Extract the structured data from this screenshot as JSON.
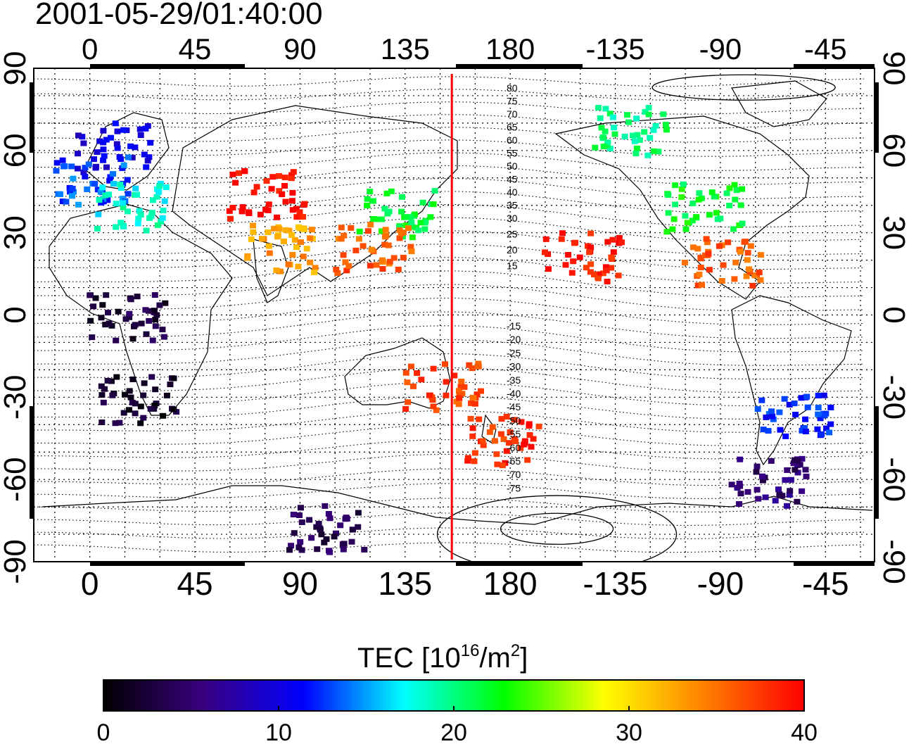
{
  "timestamp": "2001-05-29/01:40:00",
  "map": {
    "lon_ticks": [
      "0",
      "45",
      "90",
      "135",
      "180",
      "-135",
      "-90",
      "-45"
    ],
    "lat_ticks": [
      "90",
      "60",
      "30",
      "0",
      "-30",
      "-60",
      "-90"
    ],
    "lon_range": [
      -24,
      336
    ],
    "lat_range": [
      -90,
      90
    ],
    "terminator_lon": 155,
    "terminator_color": "#ff0000",
    "contour_labels_north": [
      "80",
      "75",
      "70",
      "65",
      "60",
      "55",
      "50",
      "45",
      "40",
      "35",
      "30",
      "25",
      "20",
      "15"
    ],
    "contour_labels_south": [
      "-15",
      "-20",
      "-25",
      "-30",
      "-35",
      "-40",
      "-45",
      "-50",
      "-55",
      "-60",
      "-65",
      "-70",
      "-75"
    ]
  },
  "colorbar": {
    "title_main": "TEC  [10",
    "title_exp1": "16",
    "title_mid": "/m",
    "title_exp2": "2",
    "title_end": "]",
    "tick_labels": [
      "0",
      "10",
      "20",
      "30",
      "40"
    ],
    "min": 0,
    "max": 40,
    "stops": [
      "#000000",
      "#3a0080",
      "#0000ff",
      "#00ffff",
      "#00ff00",
      "#ffff00",
      "#ff8000",
      "#ff0000"
    ]
  },
  "chart_data": {
    "type": "heatmap",
    "title": "2001-05-29/01:40:00",
    "xlabel": "",
    "ylabel": "",
    "xlim": [
      -24,
      336
    ],
    "ylim": [
      -90,
      90
    ],
    "value_range": [
      0,
      40
    ],
    "regions": [
      {
        "lon": 10,
        "lat": 62,
        "tec": 10
      },
      {
        "lon": 0,
        "lat": 50,
        "tec": 13
      },
      {
        "lon": 15,
        "lat": 40,
        "tec": 18
      },
      {
        "lon": 75,
        "lat": 45,
        "tec": 40
      },
      {
        "lon": 130,
        "lat": 38,
        "tec": 22
      },
      {
        "lon": 120,
        "lat": 25,
        "tec": 36
      },
      {
        "lon": 20,
        "lat": -30,
        "tec": 2
      },
      {
        "lon": 15,
        "lat": 0,
        "tec": 3
      },
      {
        "lon": 150,
        "lat": -25,
        "tec": 37
      },
      {
        "lon": 175,
        "lat": -45,
        "tec": 38
      },
      {
        "lon": 210,
        "lat": 22,
        "tec": 39
      },
      {
        "lon": 262,
        "lat": 40,
        "tec": 22
      },
      {
        "lon": 270,
        "lat": 20,
        "tec": 36
      },
      {
        "lon": 300,
        "lat": -35,
        "tec": 12
      },
      {
        "lon": 290,
        "lat": -60,
        "tec": 5
      },
      {
        "lon": 100,
        "lat": -77,
        "tec": 4
      },
      {
        "lon": 80,
        "lat": 25,
        "tec": 33
      },
      {
        "lon": 230,
        "lat": 68,
        "tec": 20
      }
    ]
  }
}
